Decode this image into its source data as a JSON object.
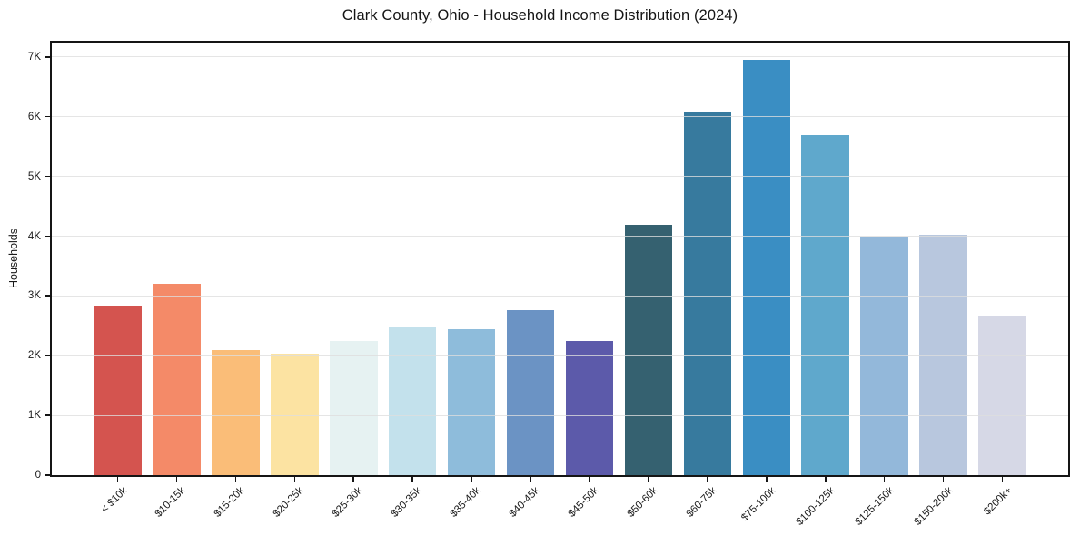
{
  "title": "Clark County, Ohio - Household Income Distribution (2024)",
  "chart_data": {
    "type": "bar",
    "title": "Clark County, Ohio - Household Income Distribution (2024)",
    "xlabel": "",
    "ylabel": "Households",
    "ylim": [
      0,
      7250
    ],
    "grid": "horizontal",
    "legend": "none",
    "yticks": [
      {
        "value": 0,
        "label": "0"
      },
      {
        "value": 1000,
        "label": "1K"
      },
      {
        "value": 2000,
        "label": "2K"
      },
      {
        "value": 3000,
        "label": "3K"
      },
      {
        "value": 4000,
        "label": "4K"
      },
      {
        "value": 5000,
        "label": "5K"
      },
      {
        "value": 6000,
        "label": "6K"
      },
      {
        "value": 7000,
        "label": "7K"
      }
    ],
    "categories": [
      "< $10k",
      "$10-15k",
      "$15-20k",
      "$20-25k",
      "$25-30k",
      "$30-35k",
      "$35-40k",
      "$40-45k",
      "$45-50k",
      "$50-60k",
      "$60-75k",
      "$75-100k",
      "$100-125k",
      "$125-150k",
      "$150-200k",
      "$200k+"
    ],
    "values": [
      2830,
      3210,
      2090,
      2030,
      2240,
      2480,
      2450,
      2770,
      2240,
      4190,
      6090,
      6950,
      5690,
      3990,
      4030,
      2680
    ],
    "bar_colors": [
      "#d4544f",
      "#f48a68",
      "#fabd78",
      "#fce3a2",
      "#e6f2f2",
      "#c3e1ec",
      "#8ebcdb",
      "#6b93c4",
      "#5c5aaa",
      "#356170",
      "#377a9e",
      "#3a8ec3",
      "#5fa8cc",
      "#93b8da",
      "#b8c7de",
      "#d6d8e6"
    ],
    "spine_color": "#151515",
    "gridline_color": "#dedede",
    "background_color": "#ffffff"
  }
}
